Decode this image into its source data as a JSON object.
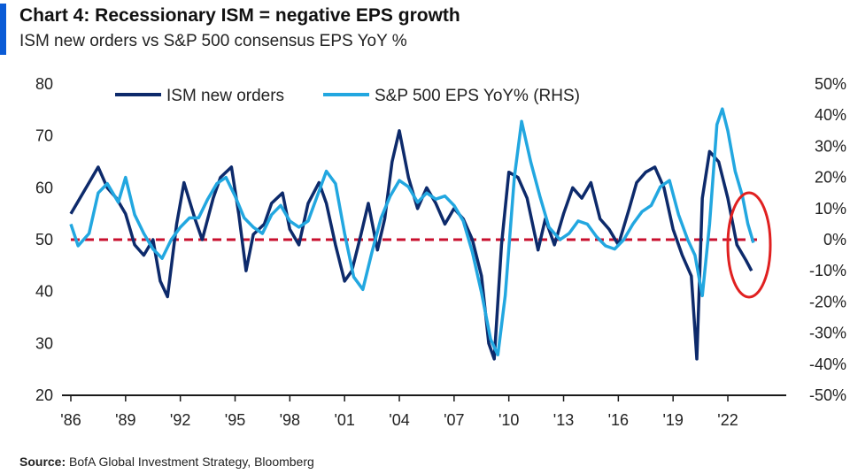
{
  "header": {
    "title": "Chart 4: Recessionary ISM = negative EPS growth",
    "subtitle": "ISM new orders vs S&P 500 consensus EPS YoY %"
  },
  "source": {
    "label": "Source:",
    "text": "BofA Global Investment Strategy, Bloomberg"
  },
  "colors": {
    "accent": "#0a5bd6",
    "ism": "#0d2a6b",
    "eps": "#22a7e0",
    "threshold": "#c8102e",
    "circle": "#e02020",
    "axis": "#1a1a1a"
  },
  "chart_data": {
    "type": "line",
    "x_ticks": [
      "'86",
      "'89",
      "'92",
      "'95",
      "'98",
      "'01",
      "'04",
      "'07",
      "'10",
      "'13",
      "'16",
      "'19",
      "'22"
    ],
    "x_tick_years": [
      1986,
      1989,
      1992,
      1995,
      1998,
      2001,
      2004,
      2007,
      2010,
      2013,
      2016,
      2019,
      2022
    ],
    "xlim": [
      1986,
      2023.6
    ],
    "left_axis": {
      "ticks": [
        "80",
        "70",
        "60",
        "50",
        "40",
        "30",
        "20"
      ],
      "ylim": [
        20,
        80
      ]
    },
    "right_axis": {
      "ticks": [
        "50%",
        "40%",
        "30%",
        "20%",
        "10%",
        "0%",
        "-10%",
        "-20%",
        "-30%",
        "-40%",
        "-50%"
      ],
      "ylim": [
        -50,
        50
      ]
    },
    "reference_line": {
      "axis": "left",
      "value": 50,
      "style": "dashed"
    },
    "annotation": {
      "type": "ellipse",
      "around": "2022-2023 lows"
    },
    "series": [
      {
        "name": "ISM new orders",
        "axis": "left",
        "x": [
          1986.0,
          1986.5,
          1987.0,
          1987.5,
          1988.0,
          1988.5,
          1989.0,
          1989.5,
          1990.0,
          1990.5,
          1990.9,
          1991.3,
          1991.8,
          1992.2,
          1992.8,
          1993.2,
          1993.8,
          1994.2,
          1994.8,
          1995.2,
          1995.6,
          1996.0,
          1996.6,
          1997.0,
          1997.6,
          1998.0,
          1998.5,
          1999.0,
          1999.6,
          2000.0,
          2000.5,
          2001.0,
          2001.4,
          2001.9,
          2002.3,
          2002.8,
          2003.2,
          2003.6,
          2004.0,
          2004.5,
          2005.0,
          2005.5,
          2006.0,
          2006.5,
          2007.0,
          2007.5,
          2008.0,
          2008.5,
          2008.9,
          2009.2,
          2009.6,
          2010.0,
          2010.5,
          2011.0,
          2011.6,
          2012.0,
          2012.5,
          2013.0,
          2013.5,
          2014.0,
          2014.5,
          2015.0,
          2015.5,
          2016.0,
          2016.6,
          2017.0,
          2017.5,
          2018.0,
          2018.5,
          2019.0,
          2019.5,
          2020.0,
          2020.3,
          2020.6,
          2021.0,
          2021.5,
          2022.0,
          2022.5,
          2023.0,
          2023.3
        ],
        "y": [
          55,
          58,
          61,
          64,
          60,
          58,
          55,
          49,
          47,
          50,
          42,
          39,
          53,
          61,
          54,
          50,
          58,
          62,
          64,
          55,
          44,
          51,
          53,
          57,
          59,
          52,
          49,
          57,
          61,
          57,
          49,
          42,
          44,
          51,
          57,
          48,
          54,
          65,
          71,
          62,
          56,
          60,
          57,
          53,
          56,
          54,
          50,
          43,
          30,
          27,
          49,
          63,
          62,
          58,
          48,
          54,
          49,
          55,
          60,
          58,
          61,
          54,
          52,
          49,
          56,
          61,
          63,
          64,
          60,
          52,
          47,
          43,
          27,
          58,
          67,
          65,
          58,
          49,
          46,
          44
        ]
      },
      {
        "name": "S&P 500 EPS YoY% (RHS)",
        "axis": "right",
        "x": [
          1986.0,
          1986.4,
          1987.0,
          1987.5,
          1988.0,
          1988.6,
          1989.0,
          1989.5,
          1990.0,
          1990.5,
          1991.0,
          1991.5,
          1992.0,
          1992.5,
          1993.0,
          1993.5,
          1994.0,
          1994.5,
          1995.0,
          1995.5,
          1996.0,
          1996.5,
          1997.0,
          1997.5,
          1998.0,
          1998.5,
          1999.0,
          1999.5,
          2000.0,
          2000.5,
          2001.0,
          2001.5,
          2002.0,
          2002.5,
          2003.0,
          2003.5,
          2004.0,
          2004.5,
          2005.0,
          2005.5,
          2006.0,
          2006.5,
          2007.0,
          2007.5,
          2008.0,
          2008.5,
          2009.0,
          2009.4,
          2009.8,
          2010.3,
          2010.7,
          2011.2,
          2011.7,
          2012.2,
          2012.8,
          2013.3,
          2013.8,
          2014.3,
          2014.8,
          2015.3,
          2015.8,
          2016.3,
          2016.8,
          2017.3,
          2017.8,
          2018.3,
          2018.8,
          2019.3,
          2019.8,
          2020.2,
          2020.6,
          2021.0,
          2021.4,
          2021.7,
          2022.0,
          2022.4,
          2022.8,
          2023.1,
          2023.4
        ],
        "y": [
          5,
          -2,
          2,
          15,
          18,
          12,
          20,
          8,
          2,
          -3,
          -6,
          0,
          4,
          7,
          7,
          13,
          18,
          20,
          14,
          7,
          4,
          2,
          8,
          11,
          6,
          4,
          6,
          14,
          22,
          18,
          2,
          -12,
          -16,
          -4,
          7,
          14,
          19,
          17,
          12,
          15,
          13,
          14,
          11,
          6,
          -4,
          -17,
          -32,
          -37,
          -18,
          20,
          38,
          25,
          14,
          4,
          0,
          2,
          6,
          5,
          1,
          -2,
          -3,
          0,
          5,
          9,
          11,
          17,
          19,
          8,
          0,
          -5,
          -18,
          5,
          37,
          42,
          35,
          22,
          14,
          5,
          -1
        ]
      }
    ]
  }
}
